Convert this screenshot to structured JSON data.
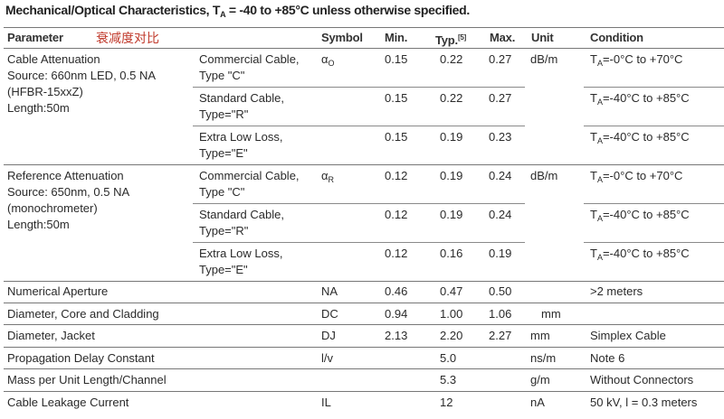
{
  "title": {
    "pre": "Mechanical/Optical Characteristics, T",
    "sub": "A",
    "post": " = -40 to +85°C unless otherwise specified."
  },
  "header": {
    "parameter": "Parameter",
    "annotation": "衰减度对比",
    "symbol": "Symbol",
    "min": "Min.",
    "typ": "Typ.",
    "typ_note": "[5]",
    "max": "Max.",
    "unit": "Unit",
    "condition": "Condition"
  },
  "groups": [
    {
      "param_lines": [
        "Cable Attenuation",
        "Source: 660nm LED, 0.5 NA",
        "(HFBR-15xxZ)",
        "Length:50m"
      ],
      "symbol": "α",
      "symbol_sub": "O",
      "unit": "dB/m",
      "rows": [
        {
          "type_lines": [
            "Commercial Cable,",
            "Type \"C\""
          ],
          "min": "0.15",
          "typ": "0.22",
          "max": "0.27",
          "cond_pre": "T",
          "cond_sub": "A",
          "cond_post": "=-0°C to +70°C"
        },
        {
          "type_lines": [
            "Standard Cable,",
            "Type=\"R\""
          ],
          "min": "0.15",
          "typ": "0.22",
          "max": "0.27",
          "cond_pre": "T",
          "cond_sub": "A",
          "cond_post": "=-40°C to +85°C"
        },
        {
          "type_lines": [
            "Extra Low Loss,",
            "Type=\"E\""
          ],
          "min": "0.15",
          "typ": "0.19",
          "max": "0.23",
          "cond_pre": "T",
          "cond_sub": "A",
          "cond_post": "=-40°C to +85°C"
        }
      ]
    },
    {
      "param_lines": [
        "Reference Attenuation",
        "Source: 650nm, 0.5 NA",
        "(monochrometer)",
        "Length:50m"
      ],
      "symbol": "α",
      "symbol_sub": "R",
      "unit": "dB/m",
      "rows": [
        {
          "type_lines": [
            "Commercial Cable,",
            "Type \"C\""
          ],
          "min": "0.12",
          "typ": "0.19",
          "max": "0.24",
          "cond_pre": "T",
          "cond_sub": "A",
          "cond_post": "=-0°C to +70°C"
        },
        {
          "type_lines": [
            "Standard Cable,",
            "Type=\"R\""
          ],
          "min": "0.12",
          "typ": "0.19",
          "max": "0.24",
          "cond_pre": "T",
          "cond_sub": "A",
          "cond_post": "=-40°C to +85°C"
        },
        {
          "type_lines": [
            "Extra Low Loss,",
            "Type=\"E\""
          ],
          "min": "0.12",
          "typ": "0.16",
          "max": "0.19",
          "cond_pre": "T",
          "cond_sub": "A",
          "cond_post": "=-40°C to +85°C"
        }
      ]
    }
  ],
  "rows": [
    {
      "parameter": "Numerical Aperture",
      "symbol": "NA",
      "min": "0.46",
      "typ": "0.47",
      "max": "0.50",
      "unit": "",
      "condition": ">2 meters"
    },
    {
      "parameter": "Diameter, Core and Cladding",
      "symbol": "DC",
      "min": "0.94",
      "typ": "1.00",
      "max": "1.06",
      "unit": "mm",
      "condition": ""
    },
    {
      "parameter": "Diameter, Jacket",
      "symbol": "DJ",
      "min": "2.13",
      "typ": "2.20",
      "max": "2.27",
      "unit": "mm",
      "condition": "Simplex Cable"
    },
    {
      "parameter": "Propagation Delay Constant",
      "symbol": "l/v",
      "min": "",
      "typ": "5.0",
      "max": "",
      "unit": "ns/m",
      "condition": "Note 6"
    },
    {
      "parameter": "Mass per Unit Length/Channel",
      "symbol": "",
      "min": "",
      "typ": "5.3",
      "max": "",
      "unit": "g/m",
      "condition": "Without Connectors"
    },
    {
      "parameter": "Cable Leakage Current",
      "symbol": "IL",
      "min": "",
      "typ": "12",
      "max": "",
      "unit": "nA",
      "condition": "50 kV, l = 0.3 meters"
    }
  ]
}
